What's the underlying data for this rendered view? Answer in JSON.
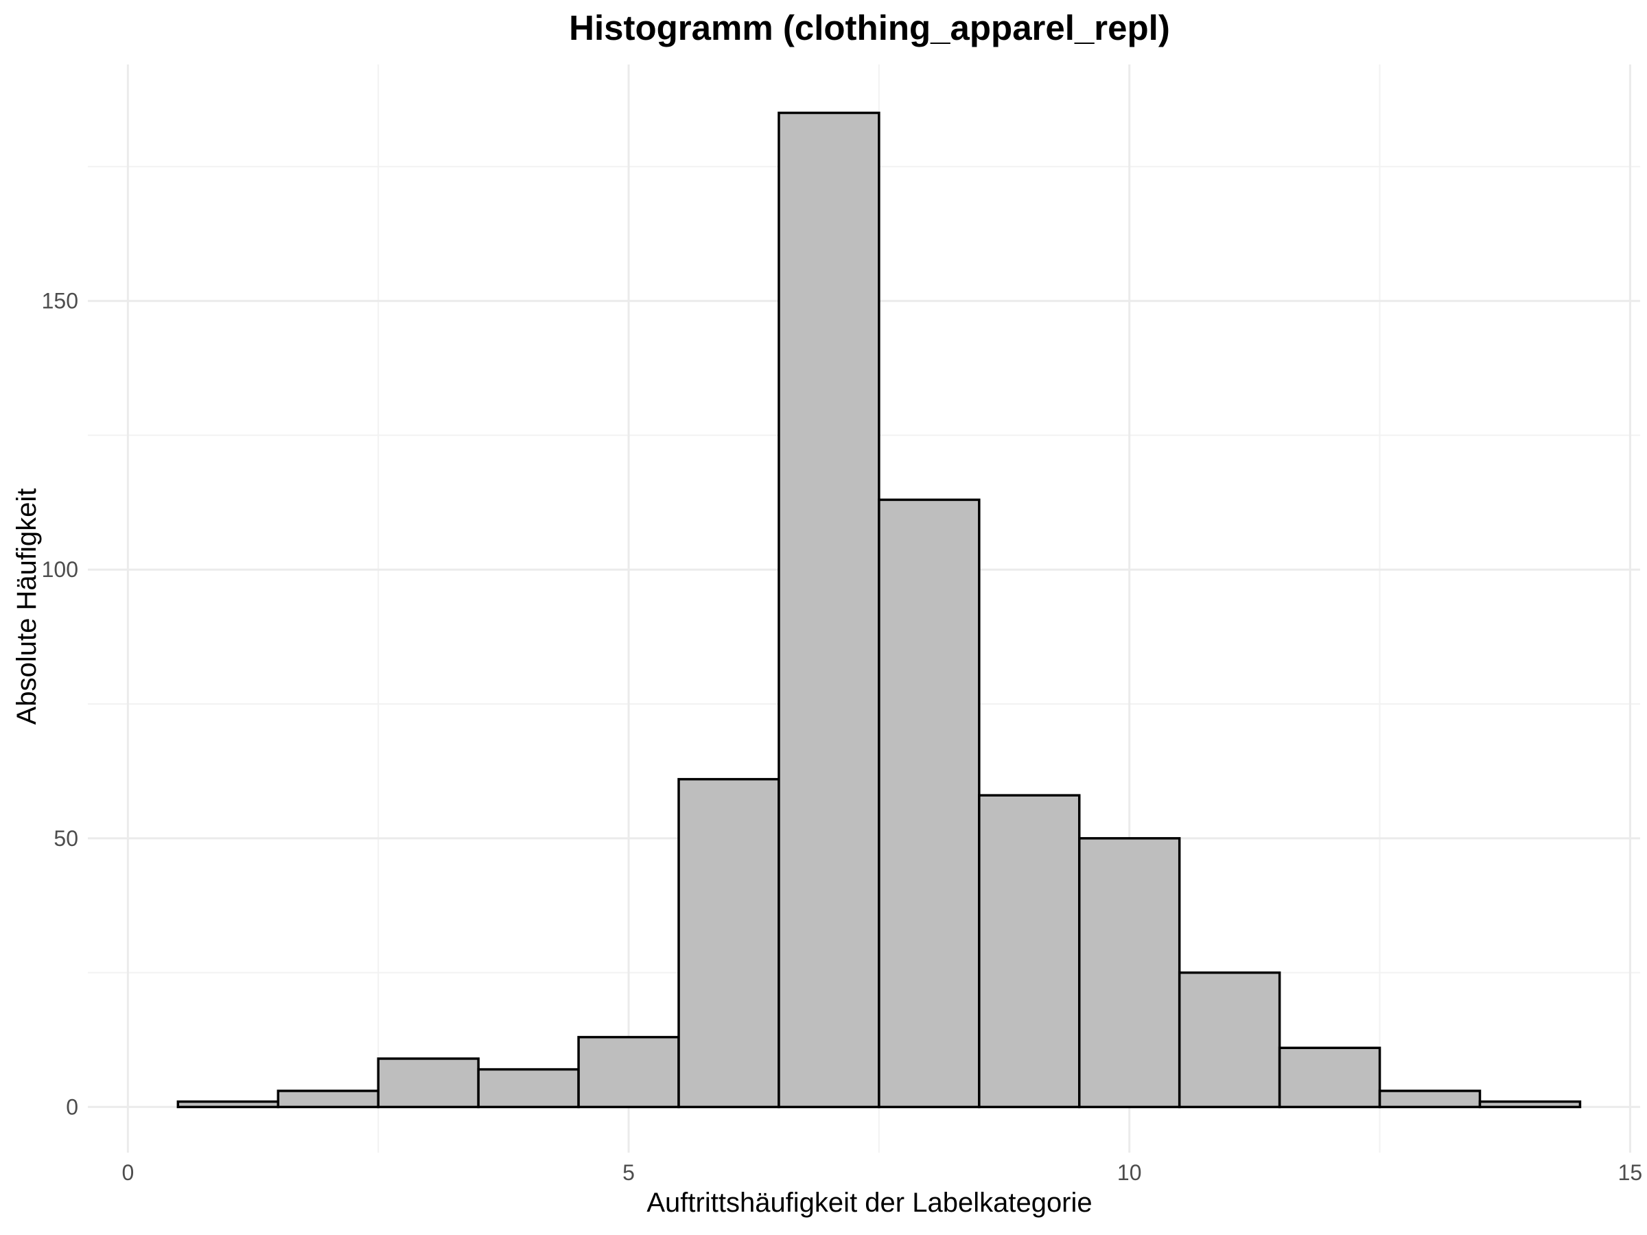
{
  "chart_data": {
    "type": "histogram",
    "title": "Histogramm (clothing_apparel_repl)",
    "xlabel": "Auftrittshäufigkeit der Labelkategorie",
    "ylabel": "Absolute Häufigkeit",
    "xlim": [
      -0.4,
      15.1
    ],
    "ylim": [
      -8.5,
      194
    ],
    "x_ticks": [
      0,
      5,
      10,
      15
    ],
    "x_tick_labels": [
      "0",
      "5",
      "10",
      "15"
    ],
    "x_minor_ticks": [
      2.5,
      7.5,
      12.5
    ],
    "y_ticks": [
      0,
      50,
      100,
      150
    ],
    "y_tick_labels": [
      "0",
      "50",
      "100",
      "150"
    ],
    "y_minor_ticks": [
      25,
      75,
      125,
      175
    ],
    "grid": true,
    "bin_width": 1,
    "bins": [
      {
        "x": 1,
        "count": 1
      },
      {
        "x": 2,
        "count": 3
      },
      {
        "x": 3,
        "count": 9
      },
      {
        "x": 4,
        "count": 7
      },
      {
        "x": 5,
        "count": 13
      },
      {
        "x": 6,
        "count": 61
      },
      {
        "x": 7,
        "count": 185
      },
      {
        "x": 8,
        "count": 113
      },
      {
        "x": 9,
        "count": 58
      },
      {
        "x": 10,
        "count": 50
      },
      {
        "x": 11,
        "count": 25
      },
      {
        "x": 12,
        "count": 11
      },
      {
        "x": 13,
        "count": 3
      },
      {
        "x": 14,
        "count": 1
      }
    ],
    "colors": {
      "bar_fill": "#bebebe",
      "bar_stroke": "#000000",
      "grid_major": "#ebebeb",
      "grid_minor": "#f2f2f2",
      "tick_text": "#4d4d4d",
      "title_text": "#000000"
    }
  }
}
